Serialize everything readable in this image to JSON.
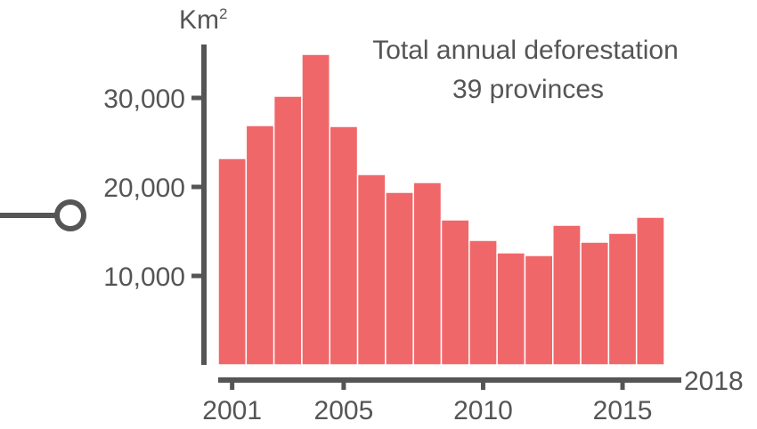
{
  "chart_data": {
    "type": "bar",
    "title": "Total annual deforestation",
    "subtitle": "39 provinces",
    "ylabel": "Km",
    "ylabel_superscript": "2",
    "x": [
      2001,
      2002,
      2003,
      2004,
      2005,
      2006,
      2007,
      2008,
      2009,
      2010,
      2011,
      2012,
      2013,
      2014,
      2015,
      2016
    ],
    "values": [
      23200,
      26900,
      30200,
      34900,
      26800,
      21400,
      19400,
      20500,
      16300,
      14000,
      12600,
      12300,
      15700,
      13800,
      14800,
      16600
    ],
    "ylim": [
      0,
      36000
    ],
    "yticks": [
      10000,
      20000,
      30000
    ],
    "ytick_labels": [
      "10,000",
      "20,000",
      "30,000"
    ],
    "xticks": [
      2001,
      2005,
      2010,
      2015
    ],
    "xtick_labels": [
      "2001",
      "2005",
      "2010",
      "2015"
    ],
    "x_end_label": "2018",
    "bar_color": "#f0676a",
    "axis_color": "#555555",
    "grid": false
  }
}
